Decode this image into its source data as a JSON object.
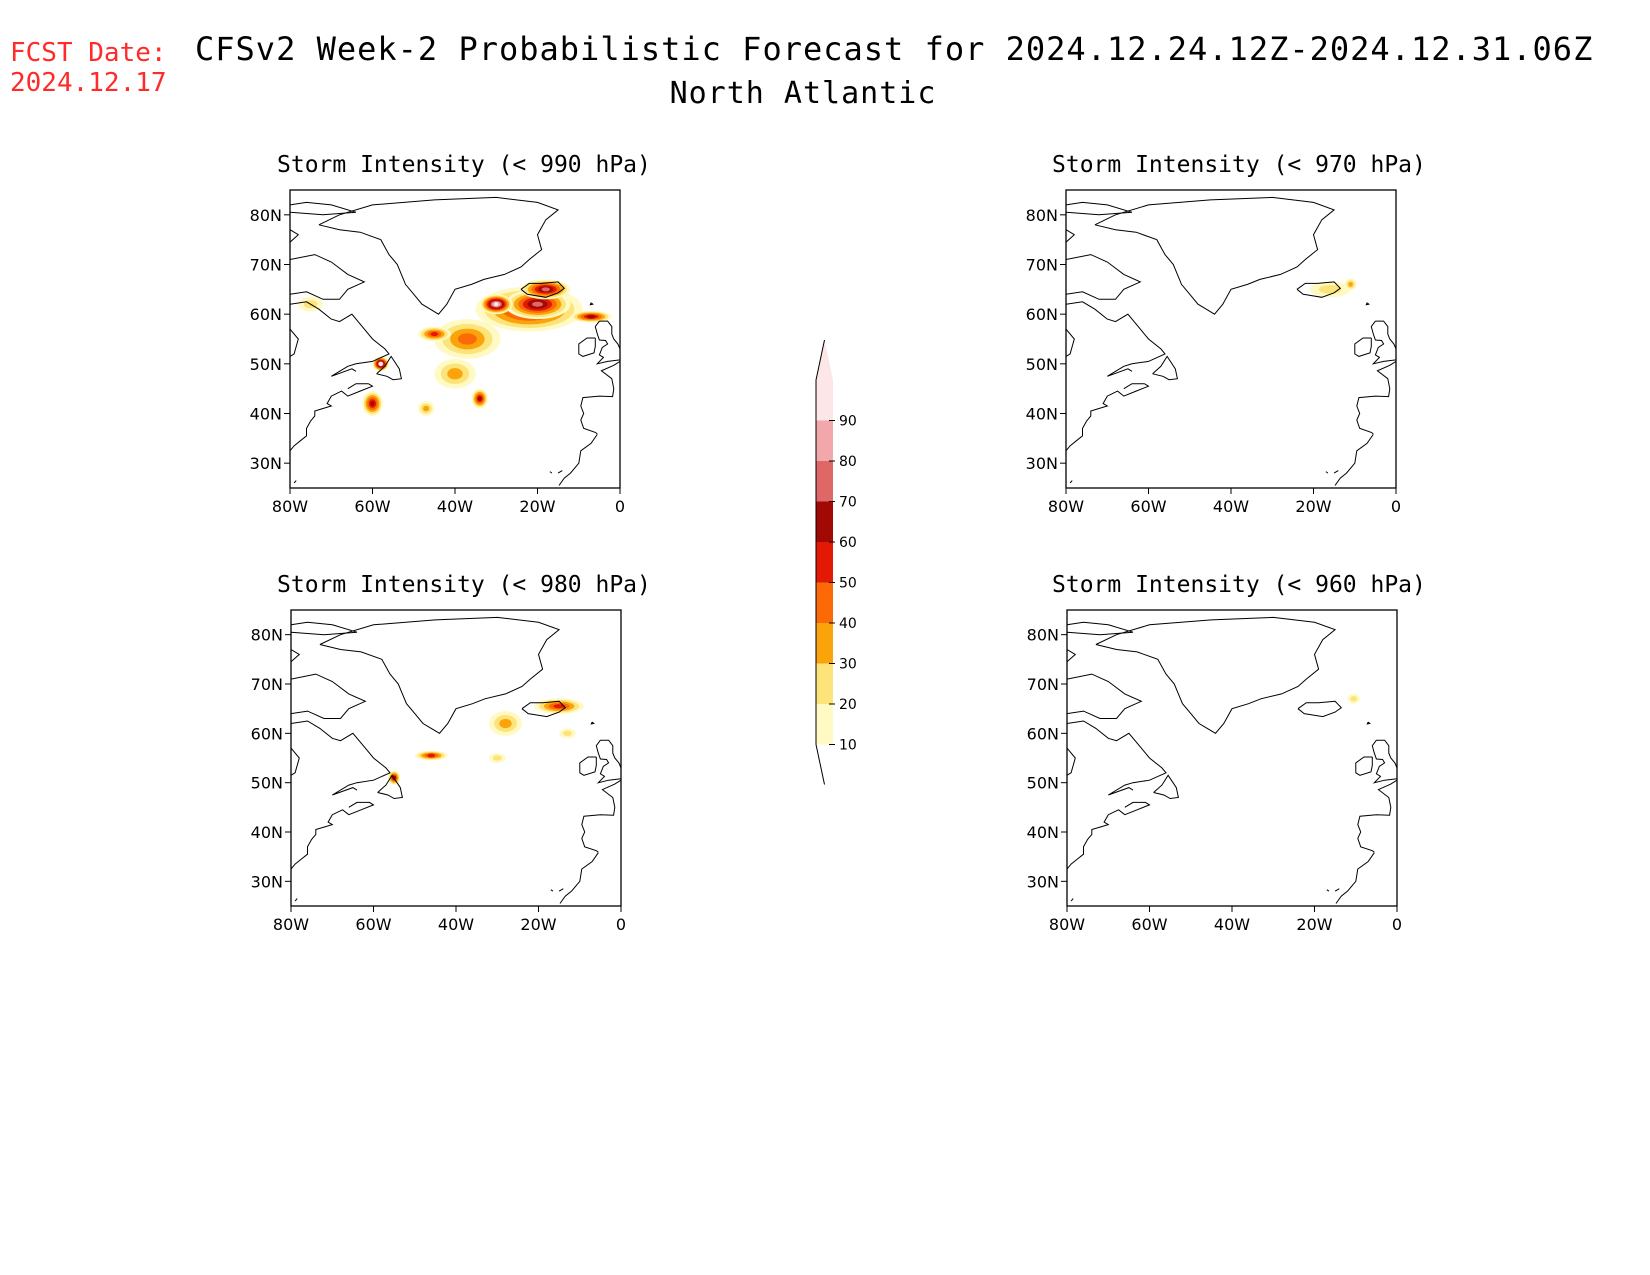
{
  "fcst_date": {
    "label": "FCST Date:",
    "value": "2024.12.17"
  },
  "title": "CFSv2 Week-2 Probabilistic Forecast for 2024.12.24.12Z-2024.12.31.06Z",
  "subtitle": "North Atlantic",
  "colors": {
    "levels": [
      "#fff9c4",
      "#fce37a",
      "#fba30b",
      "#fb6a06",
      "#e21a05",
      "#a10a04",
      "#df6766",
      "#f2a7ab",
      "#fde6e8"
    ],
    "coast": "#000000"
  },
  "colorbar": {
    "labels": [
      "10",
      "20",
      "30",
      "40",
      "50",
      "60",
      "70",
      "80",
      "90"
    ]
  },
  "axes": {
    "lon_labels": [
      "80W",
      "60W",
      "40W",
      "20W",
      "0"
    ],
    "lat_labels": [
      "80N",
      "70N",
      "60N",
      "50N",
      "40N",
      "30N"
    ],
    "lon_range": [
      -80,
      0
    ],
    "lat_range": [
      25,
      85
    ]
  },
  "panels": [
    {
      "title": "Storm Intensity (< 990 hPa)",
      "blobs": [
        {
          "lon": -22,
          "lat": 61,
          "rx": 13,
          "ry": 4.5,
          "level": 5
        },
        {
          "lon": -20,
          "lat": 62,
          "rx": 8,
          "ry": 3,
          "level": 6
        },
        {
          "lon": -30,
          "lat": 62,
          "rx": 4,
          "ry": 2,
          "level": 8
        },
        {
          "lon": -18,
          "lat": 65,
          "rx": 6,
          "ry": 2,
          "level": 6
        },
        {
          "lon": -7,
          "lat": 59.5,
          "rx": 5,
          "ry": 1.2,
          "level": 5
        },
        {
          "lon": -37,
          "lat": 55,
          "rx": 8,
          "ry": 4,
          "level": 3
        },
        {
          "lon": -45,
          "lat": 56,
          "rx": 4,
          "ry": 1.5,
          "level": 4
        },
        {
          "lon": -40,
          "lat": 48,
          "rx": 5,
          "ry": 3,
          "level": 2
        },
        {
          "lon": -47,
          "lat": 41,
          "rx": 2,
          "ry": 1.5,
          "level": 2
        },
        {
          "lon": -34,
          "lat": 43,
          "rx": 2,
          "ry": 2,
          "level": 5
        },
        {
          "lon": -60,
          "lat": 42,
          "rx": 2.5,
          "ry": 2.5,
          "level": 5
        },
        {
          "lon": -75,
          "lat": 62,
          "rx": 3,
          "ry": 1.5,
          "level": 1
        },
        {
          "lon": -58,
          "lat": 50,
          "rx": 2,
          "ry": 1.5,
          "level": 8
        }
      ]
    },
    {
      "title": "Storm Intensity (< 970 hPa)",
      "blobs": [
        {
          "lon": -16,
          "lat": 65,
          "rx": 5,
          "ry": 1.6,
          "level": 1
        },
        {
          "lon": -11,
          "lat": 66,
          "rx": 1.5,
          "ry": 1.2,
          "level": 2
        }
      ]
    },
    {
      "title": "Storm Intensity (< 980 hPa)",
      "blobs": [
        {
          "lon": -28,
          "lat": 62,
          "rx": 4,
          "ry": 2.5,
          "level": 2
        },
        {
          "lon": -15,
          "lat": 65.5,
          "rx": 6,
          "ry": 1.6,
          "level": 4
        },
        {
          "lon": -46,
          "lat": 55.5,
          "rx": 4,
          "ry": 1,
          "level": 4
        },
        {
          "lon": -55,
          "lat": 51,
          "rx": 1.5,
          "ry": 1.5,
          "level": 5
        },
        {
          "lon": -30,
          "lat": 55,
          "rx": 2,
          "ry": 1,
          "level": 1
        },
        {
          "lon": -13,
          "lat": 60,
          "rx": 2,
          "ry": 1,
          "level": 1
        }
      ]
    },
    {
      "title": "Storm Intensity (< 960 hPa)",
      "blobs": [
        {
          "lon": -10.5,
          "lat": 67,
          "rx": 1.5,
          "ry": 1,
          "level": 1
        }
      ]
    }
  ]
}
